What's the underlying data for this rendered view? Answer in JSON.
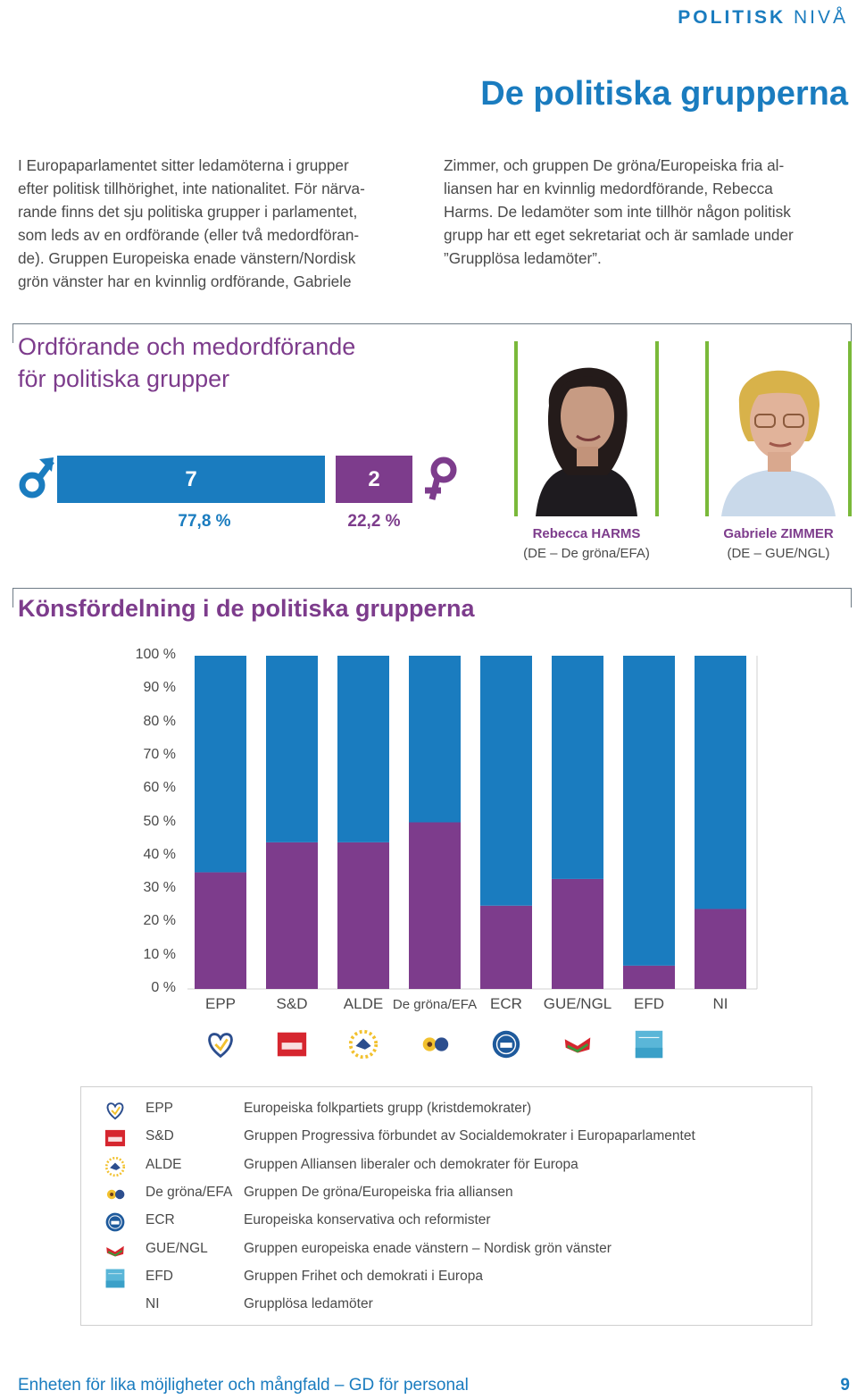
{
  "header": {
    "section_bold": "POLITISK",
    "section_light": "NIVÅ",
    "title": "De politiska grupperna"
  },
  "intro": {
    "col1": [
      "I Europaparlamentet sitter ledamöterna i grupper",
      "efter politisk tillhörighet, inte nationalitet. För närva-",
      "rande finns det sju politiska grupper i parlamentet,",
      "som leds av en ordförande (eller två medordföran-",
      "de). Gruppen Europeiska enade vänstern/Nordisk",
      "grön vänster har en kvinnlig ordförande, Gabriele"
    ],
    "col2": [
      "Zimmer, och gruppen De gröna/Europeiska fria al-",
      "liansen har en kvinnlig medordförande, Rebecca",
      "Harms. De ledamöter som inte tillhör någon politisk",
      "grupp har ett eget sekretariat och är samlade under",
      "”Grupplösa ledamöter”."
    ]
  },
  "chairs": {
    "heading_line1": "Ordförande och medordförande",
    "heading_line2": "för politiska grupper",
    "male_count": "7",
    "female_count": "2",
    "male_pct": "77,8 %",
    "female_pct": "22,2 %",
    "male_share": 0.778,
    "female_share": 0.222,
    "male_icon": "male-symbol-icon",
    "female_icon": "female-symbol-icon",
    "persons": [
      {
        "name": "Rebecca HARMS",
        "party": "(DE – De gröna/EFA)"
      },
      {
        "name": "Gabriele ZIMMER",
        "party": "(DE – GUE/NGL)"
      }
    ]
  },
  "gender_chart_heading": "Könsfördelning i de politiska grupperna",
  "chart_data": {
    "type": "bar",
    "stacked": true,
    "categories": [
      "EPP",
      "S&D",
      "ALDE",
      "De gröna/EFA",
      "ECR",
      "GUE/NGL",
      "EFD",
      "NI"
    ],
    "series": [
      {
        "color": "#7d3c8c",
        "values": [
          35,
          44,
          44,
          50,
          25,
          33,
          7,
          24
        ]
      },
      {
        "color": "#1a7cbf",
        "values": [
          65,
          56,
          56,
          50,
          75,
          67,
          93,
          76
        ]
      }
    ],
    "y_ticks": [
      "100 %",
      "90 %",
      "80 %",
      "70 %",
      "60 %",
      "50 %",
      "40 %",
      "30 %",
      "20 %",
      "10 %",
      "0 %"
    ],
    "ylim": [
      0,
      100
    ],
    "grid": false
  },
  "legend": [
    {
      "abbr": "EPP",
      "desc": "Europeiska folkpartiets grupp (kristdemokrater)",
      "icon": "epp-logo-icon"
    },
    {
      "abbr": "S&D",
      "desc": "Gruppen Progressiva förbundet av Socialdemokrater i Europaparlamentet",
      "icon": "snd-logo-icon"
    },
    {
      "abbr": "ALDE",
      "desc": "Gruppen Alliansen liberaler och demokrater för Europa",
      "icon": "alde-logo-icon"
    },
    {
      "abbr": "De gröna/EFA",
      "desc": "Gruppen De gröna/Europeiska fria alliansen",
      "icon": "greens-logo-icon"
    },
    {
      "abbr": "ECR",
      "desc": "Europeiska konservativa och reformister",
      "icon": "ecr-logo-icon"
    },
    {
      "abbr": "GUE/NGL",
      "desc": "Gruppen europeiska enade vänstern – Nordisk grön vänster",
      "icon": "gue-logo-icon"
    },
    {
      "abbr": "EFD",
      "desc": "Gruppen Frihet och demokrati i Europa",
      "icon": "efd-logo-icon"
    },
    {
      "abbr": "NI",
      "desc": "Grupplösa ledamöter",
      "icon": ""
    }
  ],
  "footer": {
    "left": "Enheten för lika möjligheter och mångfald – GD för personal",
    "page": "9"
  },
  "colors": {
    "blue": "#1a7cbf",
    "purple": "#7d3c8c",
    "green": "#7ab93a"
  }
}
